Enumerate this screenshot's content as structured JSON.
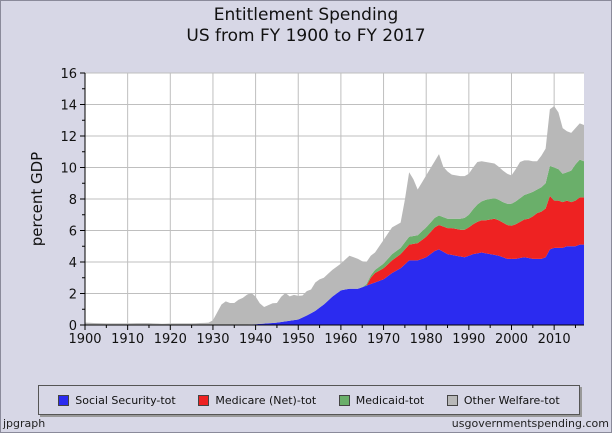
{
  "chart_data": {
    "type": "area",
    "title": "Entitlement Spending",
    "subtitle": "US from FY 1900 to FY 2017",
    "xlabel": "",
    "ylabel": "percent GDP",
    "xlim": [
      1900,
      2017
    ],
    "ylim": [
      0,
      16
    ],
    "x_ticks": [
      1900,
      1910,
      1920,
      1930,
      1940,
      1950,
      1960,
      1970,
      1980,
      1990,
      2000,
      2010
    ],
    "y_ticks": [
      0,
      2,
      4,
      6,
      8,
      10,
      12,
      14,
      16
    ],
    "grid": true,
    "stacked": true,
    "legend_position": "bottom",
    "series": [
      {
        "name": "Social Security-tot",
        "color": "#2b2bf0",
        "points": [
          [
            1900,
            0
          ],
          [
            1936,
            0
          ],
          [
            1937,
            0.02
          ],
          [
            1940,
            0.05
          ],
          [
            1945,
            0.15
          ],
          [
            1950,
            0.35
          ],
          [
            1952,
            0.6
          ],
          [
            1954,
            0.9
          ],
          [
            1956,
            1.3
          ],
          [
            1958,
            1.8
          ],
          [
            1960,
            2.2
          ],
          [
            1962,
            2.3
          ],
          [
            1964,
            2.3
          ],
          [
            1966,
            2.5
          ],
          [
            1968,
            2.7
          ],
          [
            1970,
            2.9
          ],
          [
            1972,
            3.3
          ],
          [
            1974,
            3.6
          ],
          [
            1976,
            4.1
          ],
          [
            1978,
            4.1
          ],
          [
            1980,
            4.3
          ],
          [
            1982,
            4.7
          ],
          [
            1983,
            4.8
          ],
          [
            1985,
            4.5
          ],
          [
            1987,
            4.4
          ],
          [
            1989,
            4.3
          ],
          [
            1991,
            4.5
          ],
          [
            1993,
            4.6
          ],
          [
            1995,
            4.5
          ],
          [
            1997,
            4.4
          ],
          [
            1999,
            4.2
          ],
          [
            2001,
            4.2
          ],
          [
            2003,
            4.3
          ],
          [
            2005,
            4.2
          ],
          [
            2007,
            4.2
          ],
          [
            2008,
            4.3
          ],
          [
            2009,
            4.8
          ],
          [
            2010,
            4.9
          ],
          [
            2011,
            4.9
          ],
          [
            2012,
            4.9
          ],
          [
            2013,
            5.0
          ],
          [
            2014,
            5.0
          ],
          [
            2015,
            5.0
          ],
          [
            2016,
            5.1
          ],
          [
            2017,
            5.1
          ]
        ]
      },
      {
        "name": "Medicare (Net)-tot",
        "color": "#ee2222",
        "points": [
          [
            1900,
            0
          ],
          [
            1966,
            0
          ],
          [
            1967,
            0.4
          ],
          [
            1968,
            0.6
          ],
          [
            1970,
            0.7
          ],
          [
            1972,
            0.8
          ],
          [
            1974,
            0.9
          ],
          [
            1976,
            1.0
          ],
          [
            1978,
            1.1
          ],
          [
            1980,
            1.3
          ],
          [
            1982,
            1.5
          ],
          [
            1984,
            1.6
          ],
          [
            1986,
            1.7
          ],
          [
            1988,
            1.7
          ],
          [
            1990,
            1.8
          ],
          [
            1992,
            2.0
          ],
          [
            1994,
            2.1
          ],
          [
            1996,
            2.3
          ],
          [
            1998,
            2.2
          ],
          [
            2000,
            2.1
          ],
          [
            2002,
            2.3
          ],
          [
            2004,
            2.5
          ],
          [
            2006,
            2.9
          ],
          [
            2008,
            3.1
          ],
          [
            2009,
            3.4
          ],
          [
            2010,
            3.0
          ],
          [
            2011,
            3.0
          ],
          [
            2012,
            2.9
          ],
          [
            2013,
            2.9
          ],
          [
            2014,
            2.8
          ],
          [
            2015,
            2.9
          ],
          [
            2016,
            3.0
          ],
          [
            2017,
            3.0
          ]
        ]
      },
      {
        "name": "Medicaid-tot",
        "color": "#6aaf6a",
        "points": [
          [
            1900,
            0
          ],
          [
            1965,
            0
          ],
          [
            1966,
            0.1
          ],
          [
            1968,
            0.2
          ],
          [
            1970,
            0.3
          ],
          [
            1972,
            0.4
          ],
          [
            1974,
            0.4
          ],
          [
            1976,
            0.5
          ],
          [
            1978,
            0.5
          ],
          [
            1980,
            0.6
          ],
          [
            1982,
            0.6
          ],
          [
            1984,
            0.6
          ],
          [
            1986,
            0.6
          ],
          [
            1988,
            0.7
          ],
          [
            1990,
            0.8
          ],
          [
            1992,
            1.1
          ],
          [
            1994,
            1.3
          ],
          [
            1996,
            1.3
          ],
          [
            1998,
            1.3
          ],
          [
            2000,
            1.4
          ],
          [
            2002,
            1.5
          ],
          [
            2004,
            1.6
          ],
          [
            2006,
            1.5
          ],
          [
            2008,
            1.6
          ],
          [
            2009,
            1.9
          ],
          [
            2010,
            2.1
          ],
          [
            2011,
            2.0
          ],
          [
            2012,
            1.8
          ],
          [
            2013,
            1.8
          ],
          [
            2014,
            2.0
          ],
          [
            2015,
            2.3
          ],
          [
            2016,
            2.4
          ],
          [
            2017,
            2.3
          ]
        ]
      },
      {
        "name": "Other Welfare-tot",
        "color": "#b8b8b8",
        "points": [
          [
            1900,
            0.15
          ],
          [
            1905,
            0.1
          ],
          [
            1910,
            0.1
          ],
          [
            1912,
            0.12
          ],
          [
            1915,
            0.12
          ],
          [
            1918,
            0.08
          ],
          [
            1920,
            0.1
          ],
          [
            1925,
            0.1
          ],
          [
            1929,
            0.15
          ],
          [
            1930,
            0.3
          ],
          [
            1931,
            0.8
          ],
          [
            1932,
            1.3
          ],
          [
            1933,
            1.5
          ],
          [
            1934,
            1.4
          ],
          [
            1935,
            1.4
          ],
          [
            1936,
            1.6
          ],
          [
            1937,
            1.7
          ],
          [
            1938,
            1.9
          ],
          [
            1939,
            2.0
          ],
          [
            1940,
            1.75
          ],
          [
            1941,
            1.3
          ],
          [
            1942,
            1.05
          ],
          [
            1943,
            1.15
          ],
          [
            1944,
            1.25
          ],
          [
            1945,
            1.25
          ],
          [
            1946,
            1.6
          ],
          [
            1947,
            1.8
          ],
          [
            1948,
            1.55
          ],
          [
            1949,
            1.6
          ],
          [
            1950,
            1.5
          ],
          [
            1951,
            1.4
          ],
          [
            1952,
            1.55
          ],
          [
            1953,
            1.5
          ],
          [
            1954,
            1.8
          ],
          [
            1955,
            1.8
          ],
          [
            1956,
            1.7
          ],
          [
            1958,
            1.7
          ],
          [
            1960,
            1.7
          ],
          [
            1962,
            2.1
          ],
          [
            1964,
            1.9
          ],
          [
            1966,
            1.4
          ],
          [
            1968,
            1.1
          ],
          [
            1970,
            1.5
          ],
          [
            1972,
            1.7
          ],
          [
            1974,
            1.6
          ],
          [
            1975,
            2.7
          ],
          [
            1976,
            4.1
          ],
          [
            1977,
            3.6
          ],
          [
            1978,
            2.9
          ],
          [
            1980,
            3.3
          ],
          [
            1982,
            3.6
          ],
          [
            1983,
            3.9
          ],
          [
            1984,
            3.2
          ],
          [
            1986,
            2.8
          ],
          [
            1988,
            2.7
          ],
          [
            1990,
            2.6
          ],
          [
            1992,
            2.7
          ],
          [
            1994,
            2.4
          ],
          [
            1996,
            2.2
          ],
          [
            1998,
            2.0
          ],
          [
            2000,
            1.8
          ],
          [
            2002,
            2.3
          ],
          [
            2004,
            2.1
          ],
          [
            2006,
            1.8
          ],
          [
            2008,
            2.2
          ],
          [
            2009,
            3.6
          ],
          [
            2010,
            3.9
          ],
          [
            2011,
            3.6
          ],
          [
            2012,
            2.9
          ],
          [
            2013,
            2.6
          ],
          [
            2014,
            2.4
          ],
          [
            2015,
            2.3
          ],
          [
            2016,
            2.3
          ],
          [
            2017,
            2.3
          ]
        ]
      }
    ]
  },
  "footer": {
    "left": "jpgraph",
    "right": "usgovernmentspending.com"
  }
}
